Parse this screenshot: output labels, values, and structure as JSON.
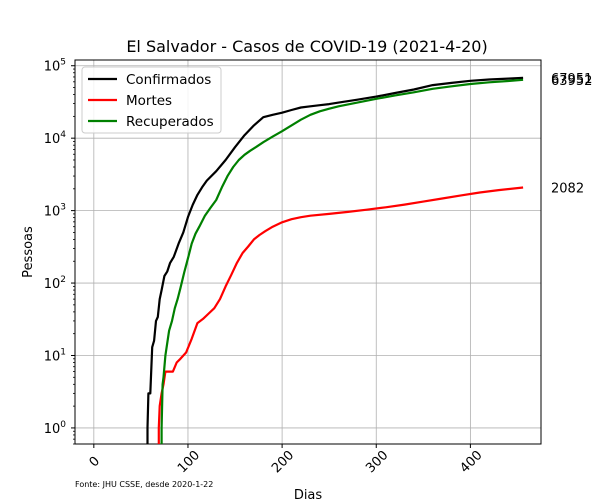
{
  "chart_data": {
    "type": "line",
    "title": "El Salvador - Casos de COVID-19 (2021-4-20)",
    "xlabel": "Dias",
    "ylabel": "Pessoas",
    "yscale": "log",
    "xlim": [
      -20,
      475
    ],
    "ylim": [
      0.6,
      120000
    ],
    "xticks": [
      0,
      100,
      200,
      300,
      400
    ],
    "yticks": [
      {
        "value": 1,
        "label": "10^0"
      },
      {
        "value": 10,
        "label": "10^1"
      },
      {
        "value": 100,
        "label": "10^2"
      },
      {
        "value": 1000,
        "label": "10^3"
      },
      {
        "value": 10000,
        "label": "10^4"
      },
      {
        "value": 100000,
        "label": "10^5"
      }
    ],
    "grid": true,
    "legend_placement": "top-left",
    "source_note": "Fonte: JHU CSSE, desde 2020-1-22",
    "series": [
      {
        "name": "Confirmados",
        "color": "#000000",
        "end_label": "67951",
        "x": [
          57,
          58,
          60,
          62,
          64,
          66,
          68,
          70,
          72,
          75,
          78,
          81,
          85,
          90,
          95,
          100,
          105,
          110,
          115,
          120,
          130,
          140,
          150,
          160,
          170,
          180,
          190,
          200,
          210,
          220,
          230,
          240,
          250,
          260,
          280,
          300,
          320,
          340,
          360,
          380,
          400,
          420,
          440,
          456
        ],
        "y": [
          1,
          3,
          3,
          13,
          16,
          30,
          34,
          60,
          80,
          125,
          145,
          190,
          230,
          350,
          500,
          820,
          1200,
          1650,
          2100,
          2600,
          3500,
          5000,
          7500,
          11000,
          15000,
          19500,
          21000,
          22500,
          24500,
          26500,
          27500,
          28500,
          29500,
          31000,
          34000,
          37500,
          42000,
          47000,
          54000,
          58000,
          62000,
          64500,
          66500,
          67951
        ]
      },
      {
        "name": "Mortes",
        "color": "#ff0000",
        "end_label": "2082",
        "x": [
          69,
          70,
          72,
          74,
          76,
          80,
          84,
          88,
          92,
          98,
          104,
          110,
          116,
          122,
          128,
          134,
          140,
          146,
          152,
          158,
          164,
          170,
          176,
          182,
          190,
          200,
          210,
          220,
          230,
          250,
          270,
          290,
          310,
          330,
          350,
          370,
          390,
          410,
          430,
          456
        ],
        "y": [
          1,
          2,
          3,
          4,
          6,
          6,
          6,
          8,
          9,
          11,
          17,
          28,
          32,
          38,
          45,
          60,
          90,
          130,
          190,
          260,
          320,
          400,
          460,
          520,
          600,
          690,
          760,
          810,
          850,
          900,
          960,
          1030,
          1110,
          1210,
          1330,
          1470,
          1620,
          1780,
          1920,
          2082
        ]
      },
      {
        "name": "Recuperados",
        "color": "#008000",
        "end_label": "63952",
        "x": [
          72,
          73,
          74,
          76,
          78,
          80,
          83,
          86,
          89,
          92,
          96,
          100,
          104,
          108,
          112,
          118,
          124,
          130,
          136,
          142,
          148,
          154,
          160,
          166,
          172,
          180,
          190,
          200,
          210,
          220,
          230,
          240,
          250,
          260,
          280,
          300,
          320,
          340,
          360,
          380,
          400,
          420,
          440,
          456
        ],
        "y": [
          1,
          4,
          5,
          10,
          15,
          22,
          30,
          45,
          60,
          85,
          140,
          220,
          350,
          480,
          600,
          850,
          1100,
          1400,
          2100,
          3000,
          4000,
          5000,
          5900,
          6700,
          7500,
          8800,
          10500,
          12500,
          15000,
          18000,
          21000,
          23500,
          25500,
          27500,
          31000,
          35000,
          39000,
          43000,
          48000,
          52000,
          56000,
          59000,
          61500,
          63952
        ]
      }
    ]
  }
}
